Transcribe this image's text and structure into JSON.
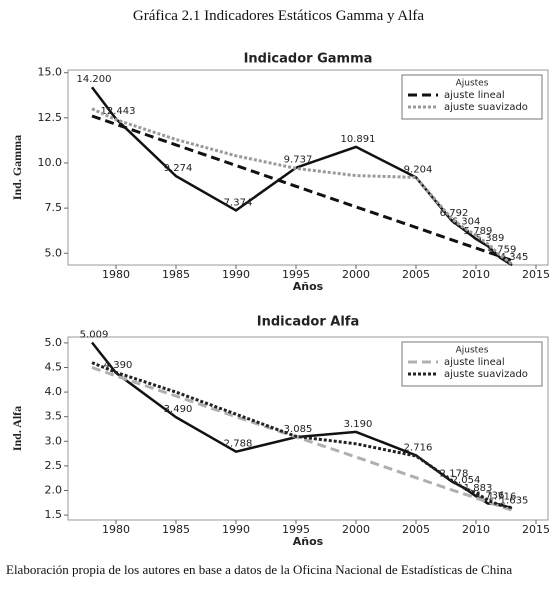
{
  "title": "Gráfica 2.1 Indicadores Estáticos Gamma y Alfa",
  "note": "Elaboración propia de los autores en base a datos de la Oficina Nacional de Estadísticas de China",
  "chart_data": [
    {
      "type": "line",
      "title": "Indicador Gamma",
      "xlabel": "Años",
      "ylabel": "Ind. Gamma",
      "x": [
        1978,
        1980,
        1985,
        1990,
        1995,
        2000,
        2005,
        2008,
        2009,
        2010,
        2011,
        2012,
        2013
      ],
      "xlim": [
        1976,
        2016
      ],
      "xticks": [
        1980,
        1985,
        1990,
        1995,
        2000,
        2005,
        2010,
        2015
      ],
      "ylim": [
        4.35,
        15.15
      ],
      "yticks": [
        {
          "value": 5,
          "label": "5.0"
        },
        7.5,
        {
          "value": 10,
          "label": "10.0"
        },
        12.5,
        {
          "value": 15,
          "label": "15.0"
        }
      ],
      "legend": "upper right",
      "legend_title": "Ajustes",
      "series": [
        {
          "color": "#111111",
          "style": "solid",
          "values": [
            14.2,
            12.443,
            9.274,
            7.374,
            9.737,
            10.891,
            9.204,
            6.792,
            6.304,
            5.789,
            5.389,
            4.759,
            4.345
          ],
          "value_labels": [
            "14.200",
            "12.443",
            "9.274",
            "7.374",
            "9.737",
            "10.891",
            "9.204",
            "6.792",
            "6.304",
            "5.789",
            "5.389",
            "4.759",
            "4.345"
          ]
        },
        {
          "name": "ajuste lineal",
          "color": "#111111",
          "style": "dashed",
          "values": [
            12.6,
            12.14,
            11.0,
            9.86,
            8.71,
            7.57,
            6.43,
            5.74,
            5.51,
            5.29,
            5.06,
            4.83,
            4.6
          ]
        },
        {
          "name": "ajuste suavizado",
          "color": "#9a9a9a",
          "style": "dotted",
          "values": [
            13.0,
            12.4,
            11.3,
            10.4,
            9.7,
            9.3,
            9.2,
            6.9,
            6.4,
            6.0,
            5.5,
            4.9,
            4.4
          ]
        }
      ]
    },
    {
      "type": "line",
      "title": "Indicador Alfa",
      "xlabel": "Años",
      "ylabel": "Ind. Alfa",
      "x": [
        1978,
        1980,
        1985,
        1990,
        1995,
        2000,
        2005,
        2008,
        2009,
        2010,
        2011,
        2012,
        2013
      ],
      "xlim": [
        1976,
        2016
      ],
      "xticks": [
        1980,
        1985,
        1990,
        1995,
        2000,
        2005,
        2010,
        2015
      ],
      "ylim": [
        1.4,
        5.12
      ],
      "yticks": [
        1.5,
        {
          "value": 2,
          "label": "2.0"
        },
        2.5,
        {
          "value": 3,
          "label": "3.0"
        },
        3.5,
        {
          "value": 4,
          "label": "4.0"
        },
        4.5,
        {
          "value": 5,
          "label": "5.0"
        }
      ],
      "legend": "upper right",
      "legend_title": "Ajustes",
      "series": [
        {
          "color": "#111111",
          "style": "solid",
          "values": [
            5.009,
            4.39,
            3.49,
            2.788,
            3.085,
            3.19,
            2.716,
            2.178,
            2.054,
            1.883,
            1.736,
            1.716,
            1.635
          ],
          "value_labels": [
            "5.009",
            "4.390",
            "3.490",
            "2.788",
            "3.085",
            "3.190",
            "2.716",
            "2.178",
            "2.054",
            "1.883",
            "1.736",
            "1.716",
            "1.635"
          ]
        },
        {
          "name": "ajuste lineal",
          "color": "#b0b0b0",
          "style": "dashed",
          "values": [
            4.5,
            4.33,
            3.92,
            3.5,
            3.09,
            2.68,
            2.26,
            2.01,
            1.93,
            1.85,
            1.76,
            1.68,
            1.6
          ]
        },
        {
          "name": "ajuste suavizado",
          "color": "#222222",
          "style": "dotted",
          "values": [
            4.6,
            4.4,
            4.0,
            3.55,
            3.1,
            2.95,
            2.7,
            2.2,
            2.05,
            1.95,
            1.8,
            1.7,
            1.65
          ]
        }
      ]
    }
  ]
}
